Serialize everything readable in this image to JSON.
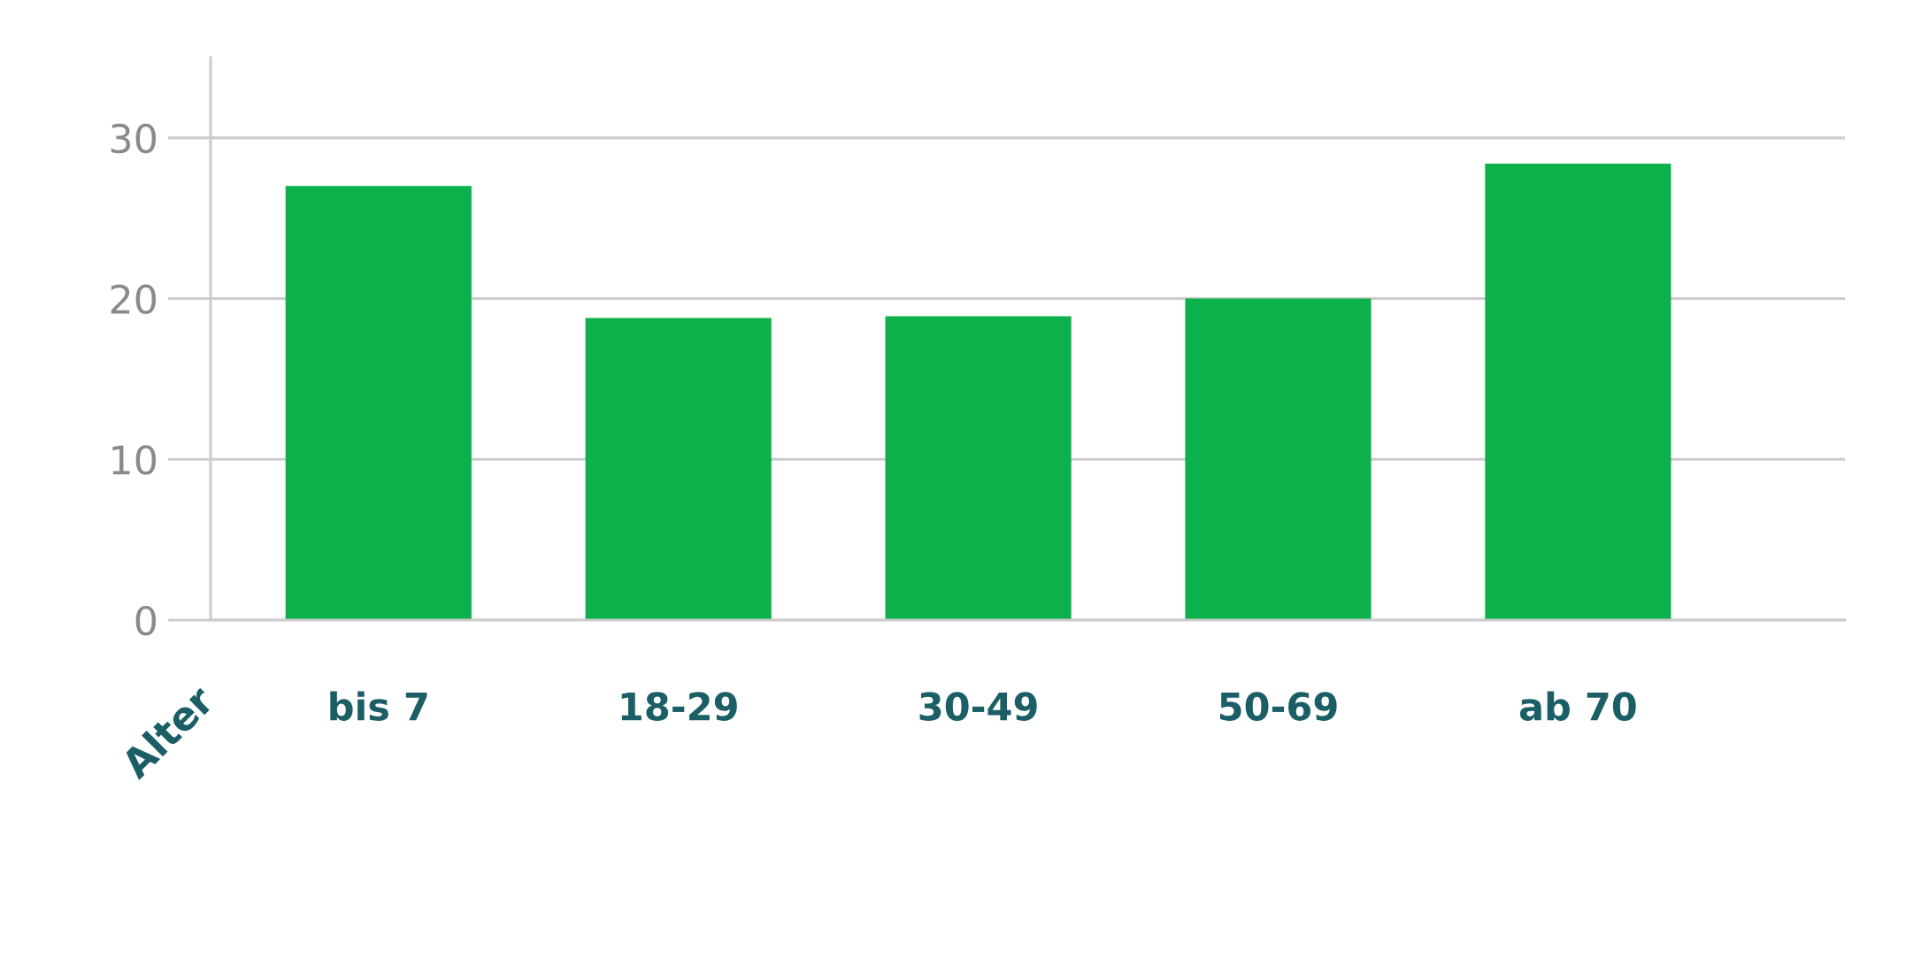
{
  "chart_data": {
    "type": "bar",
    "xlabel": "Alter",
    "categories": [
      "bis 7",
      "18-29",
      "30-49",
      "50-69",
      "ab 70"
    ],
    "values": [
      27,
      18.8,
      18.9,
      20,
      28.4
    ],
    "color": "#0db14b",
    "ylim": [
      0,
      35
    ],
    "yticks": [
      0,
      10,
      20,
      30
    ],
    "grid": "y"
  }
}
